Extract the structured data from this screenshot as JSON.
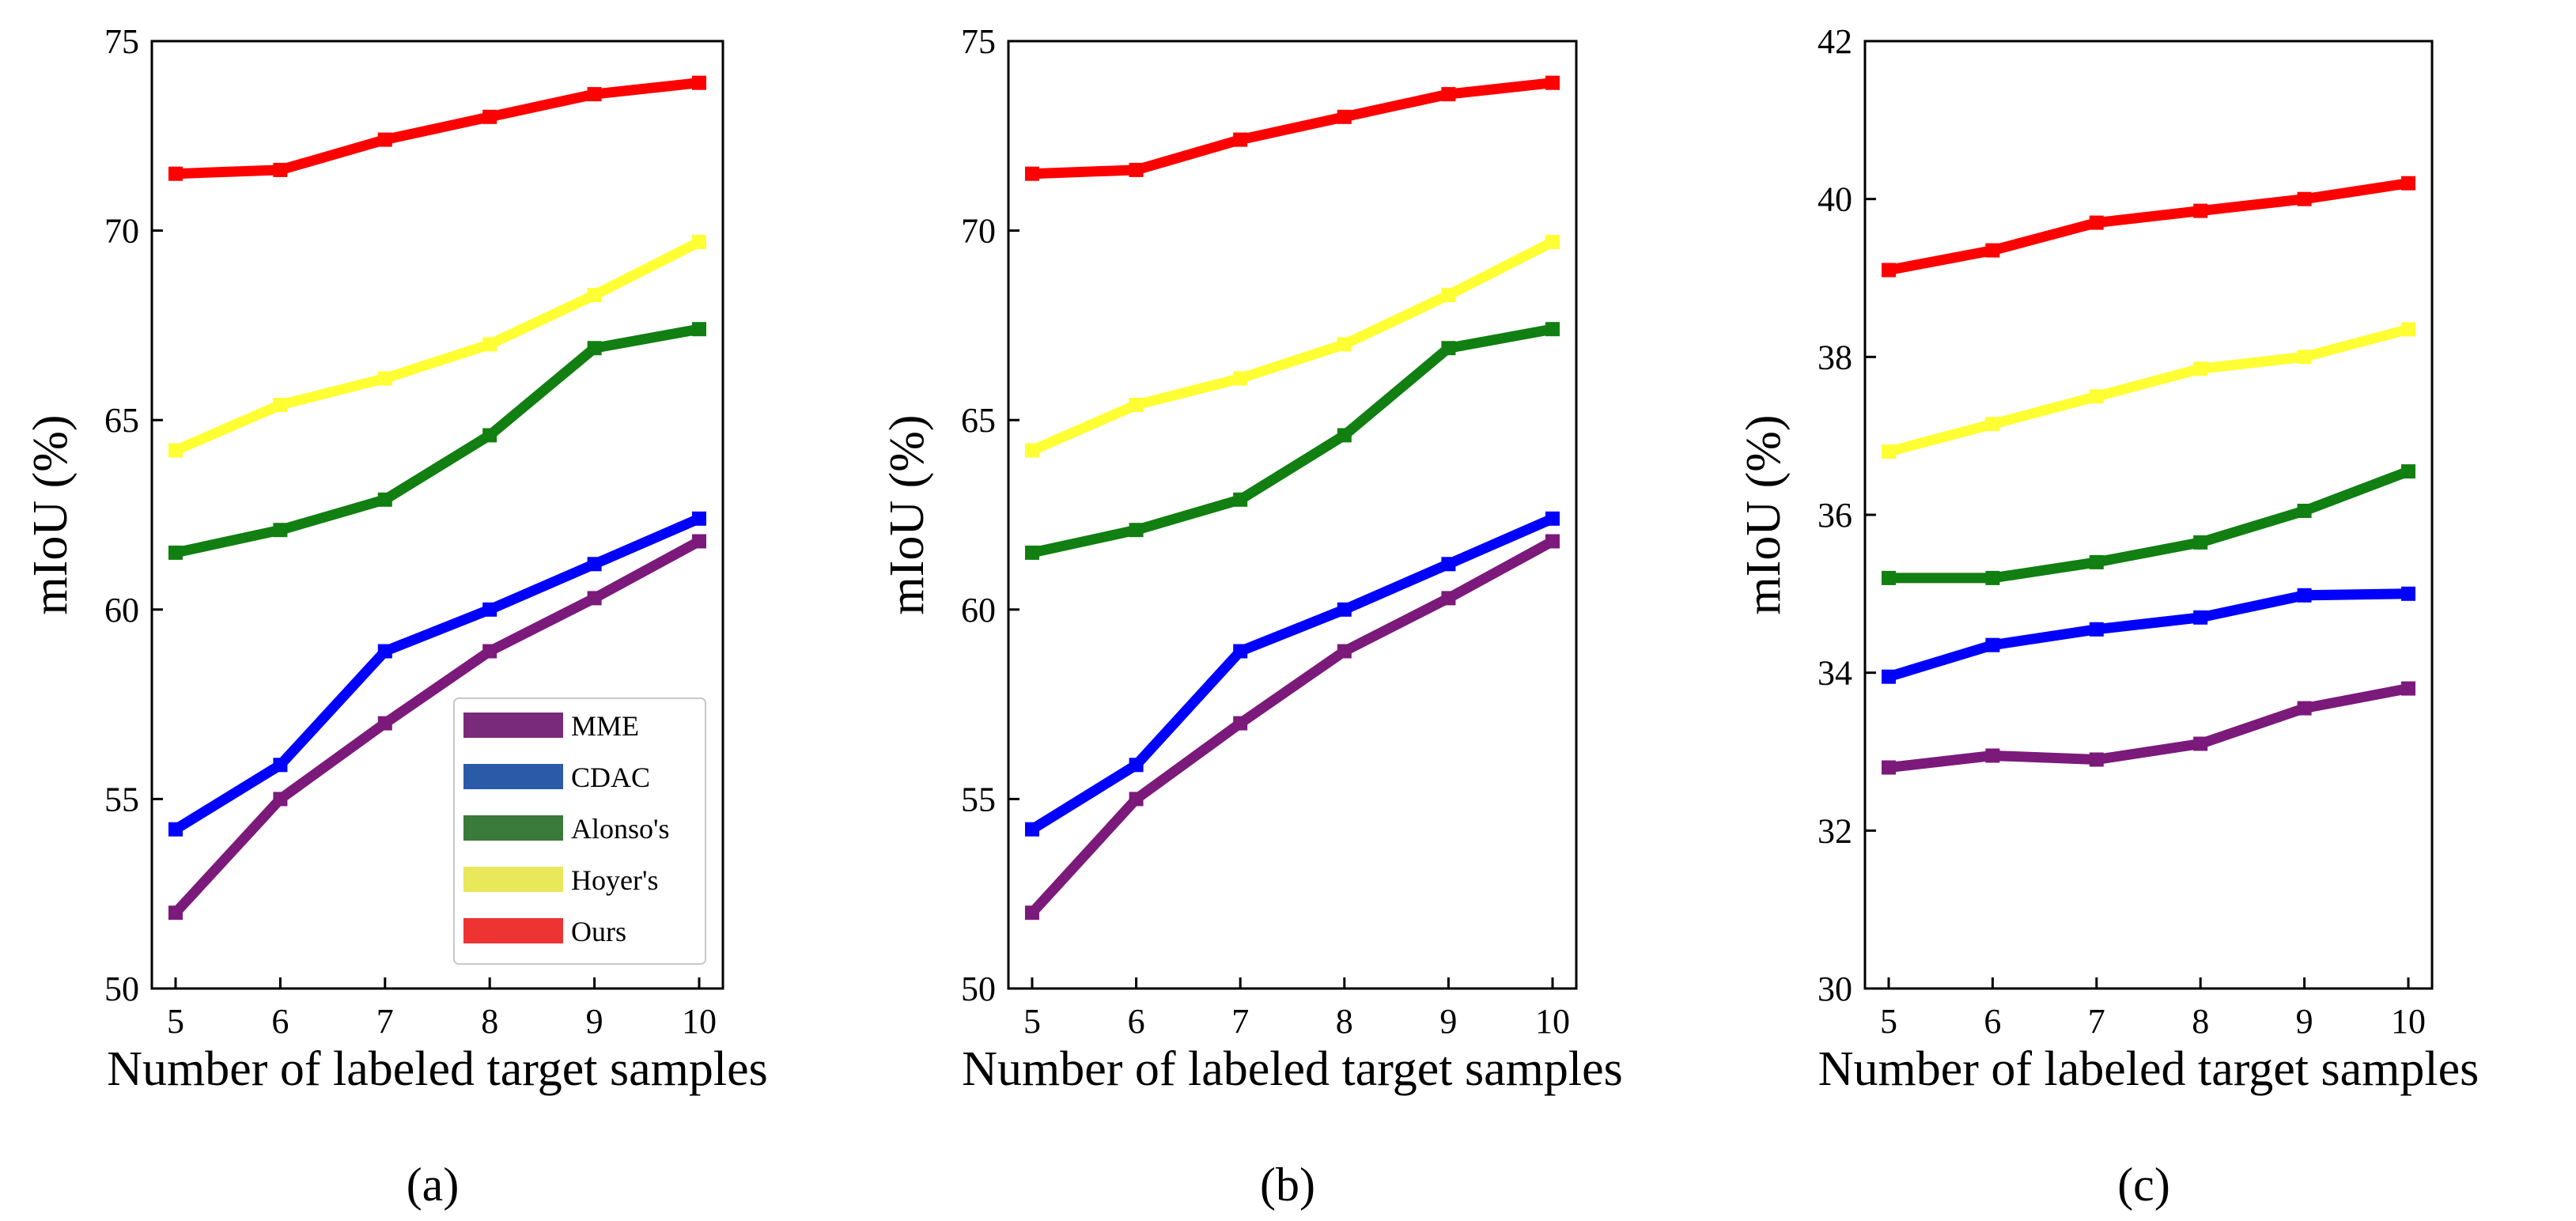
{
  "chart_data": [
    {
      "type": "line",
      "caption": "(a)",
      "xlabel": "Number of labeled target samples",
      "ylabel": "mIoU (%)",
      "x": [
        5,
        6,
        7,
        8,
        9,
        10
      ],
      "xticks": [
        "5",
        "6",
        "7",
        "8",
        "9",
        "10"
      ],
      "ylim": [
        50,
        75
      ],
      "yticks": [
        "50",
        "55",
        "60",
        "65",
        "70",
        "75"
      ],
      "legend": {
        "placement": "lower-right",
        "shown": true
      },
      "series": [
        {
          "name": "MME",
          "color": "#7b1a7b",
          "values": [
            52.0,
            55.0,
            57.0,
            58.9,
            60.3,
            61.8
          ]
        },
        {
          "name": "CDAC",
          "color": "#0000ff",
          "values": [
            54.2,
            55.9,
            58.9,
            60.0,
            61.2,
            62.4
          ]
        },
        {
          "name": "Alonso's",
          "color": "#117f11",
          "values": [
            61.5,
            62.1,
            62.9,
            64.6,
            66.9,
            67.4
          ]
        },
        {
          "name": "Hoyer's",
          "color": "#ffff33",
          "values": [
            64.2,
            65.4,
            66.1,
            67.0,
            68.3,
            69.7
          ]
        },
        {
          "name": "Ours",
          "color": "#ff0000",
          "values": [
            71.5,
            71.6,
            72.4,
            73.0,
            73.6,
            73.9
          ]
        }
      ]
    },
    {
      "type": "line",
      "caption": "(b)",
      "xlabel": "Number of labeled target samples",
      "ylabel": "mIoU (%)",
      "x": [
        5,
        6,
        7,
        8,
        9,
        10
      ],
      "xticks": [
        "5",
        "6",
        "7",
        "8",
        "9",
        "10"
      ],
      "ylim": [
        50,
        75
      ],
      "yticks": [
        "50",
        "55",
        "60",
        "65",
        "70",
        "75"
      ],
      "legend": {
        "shown": false
      },
      "series": [
        {
          "name": "MME",
          "color": "#7b1a7b",
          "values": [
            52.0,
            55.0,
            57.0,
            58.9,
            60.3,
            61.8
          ]
        },
        {
          "name": "CDAC",
          "color": "#0000ff",
          "values": [
            54.2,
            55.9,
            58.9,
            60.0,
            61.2,
            62.4
          ]
        },
        {
          "name": "Alonso's",
          "color": "#117f11",
          "values": [
            61.5,
            62.1,
            62.9,
            64.6,
            66.9,
            67.4
          ]
        },
        {
          "name": "Hoyer's",
          "color": "#ffff33",
          "values": [
            64.2,
            65.4,
            66.1,
            67.0,
            68.3,
            69.7
          ]
        },
        {
          "name": "Ours",
          "color": "#ff0000",
          "values": [
            71.5,
            71.6,
            72.4,
            73.0,
            73.6,
            73.9
          ]
        }
      ]
    },
    {
      "type": "line",
      "caption": "(c)",
      "xlabel": "Number of labeled target samples",
      "ylabel": "mIoU (%)",
      "x": [
        5,
        6,
        7,
        8,
        9,
        10
      ],
      "xticks": [
        "5",
        "6",
        "7",
        "8",
        "9",
        "10"
      ],
      "ylim": [
        30,
        42
      ],
      "yticks": [
        "30",
        "32",
        "34",
        "36",
        "38",
        "40",
        "42"
      ],
      "legend": {
        "shown": false
      },
      "series": [
        {
          "name": "MME",
          "color": "#7b1a7b",
          "values": [
            32.8,
            32.95,
            32.9,
            33.1,
            33.55,
            33.8
          ]
        },
        {
          "name": "CDAC",
          "color": "#0000ff",
          "values": [
            33.95,
            34.35,
            34.55,
            34.7,
            34.98,
            35.0
          ]
        },
        {
          "name": "Alonso's",
          "color": "#117f11",
          "values": [
            35.2,
            35.2,
            35.4,
            35.65,
            36.05,
            36.55
          ]
        },
        {
          "name": "Hoyer's",
          "color": "#ffff33",
          "values": [
            36.8,
            37.15,
            37.5,
            37.85,
            38.0,
            38.35
          ]
        },
        {
          "name": "Ours",
          "color": "#ff0000",
          "values": [
            39.1,
            39.35,
            39.7,
            39.85,
            40.0,
            40.2
          ]
        }
      ]
    }
  ],
  "legend_colors": {
    "MME": "#7a2a7a",
    "CDAC": "#2a5aa8",
    "Alonso's": "#3a7a3a",
    "Hoyer's": "#e8e85a",
    "Ours": "#ee3333"
  }
}
